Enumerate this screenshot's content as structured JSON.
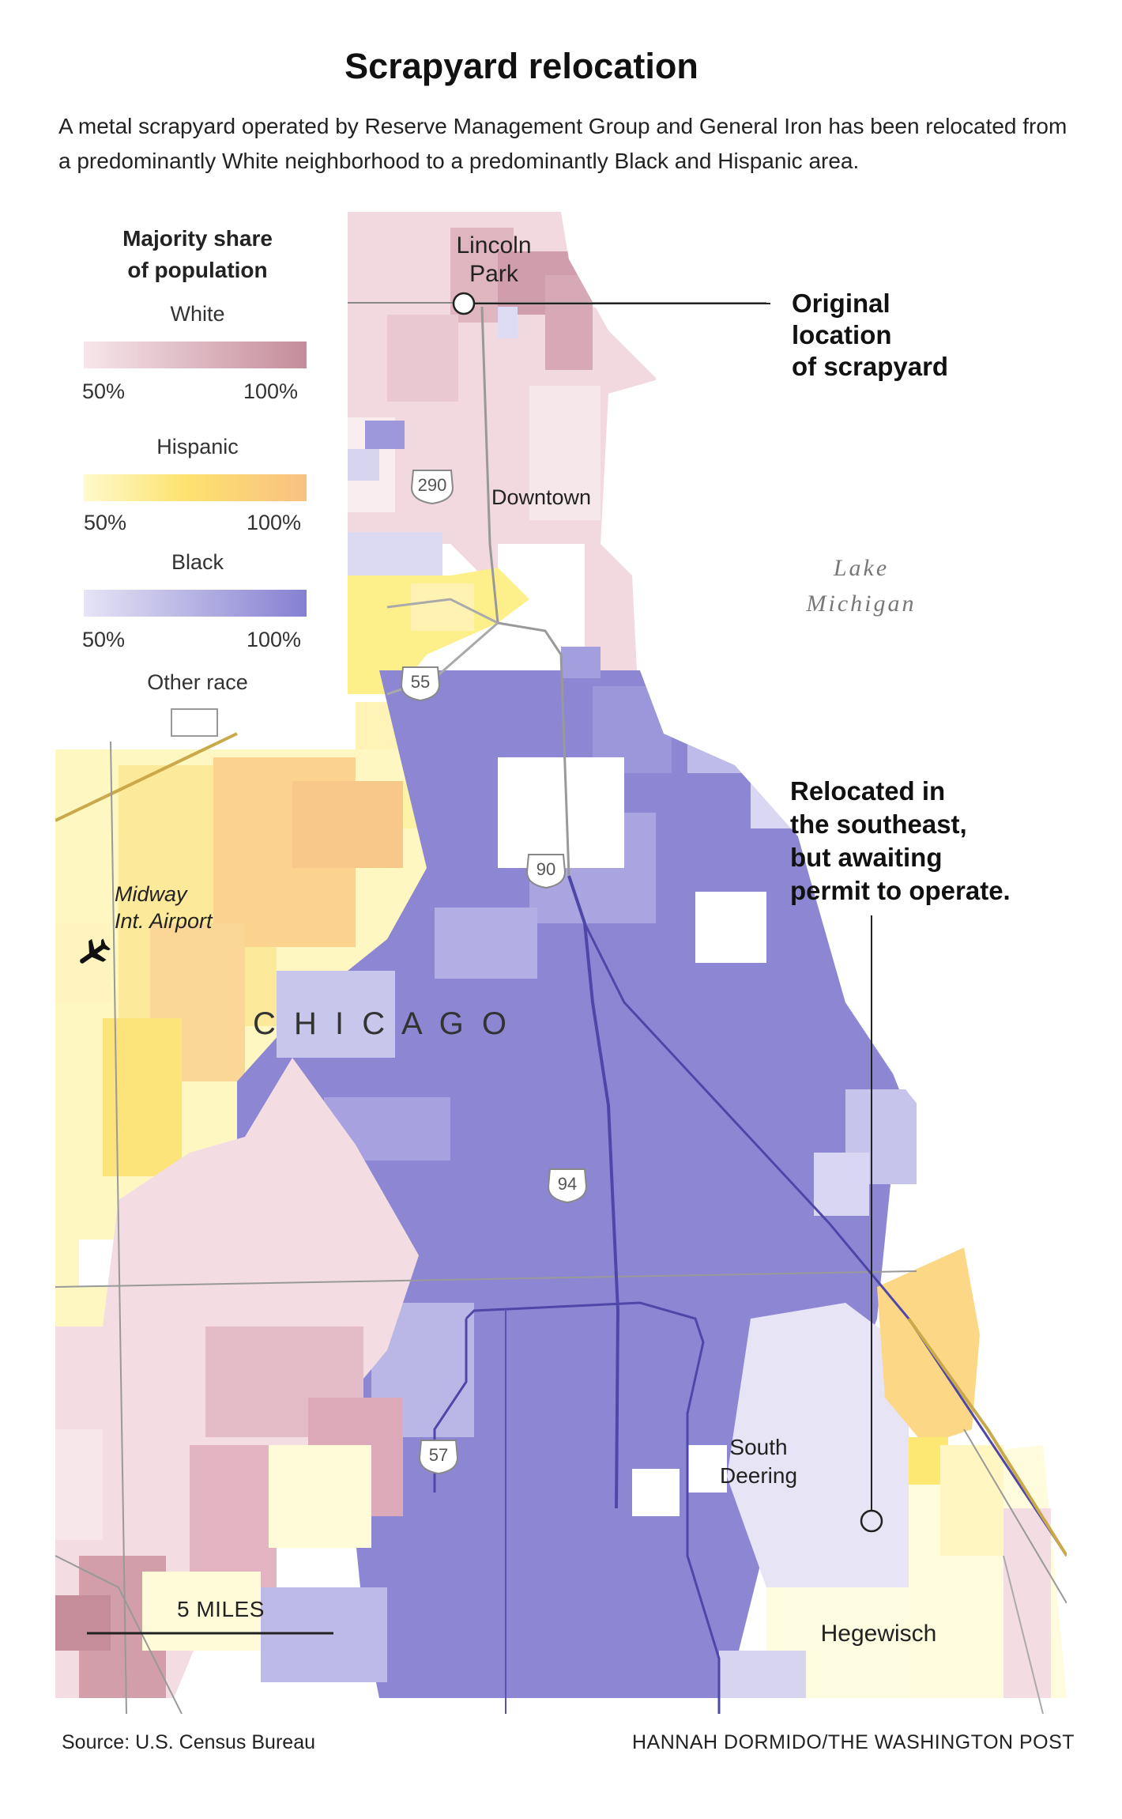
{
  "title": "Scrapyard relocation",
  "subtitle": "A metal scrapyard operated by Reserve Management Group and General Iron has been relocated from a predominantly White neighborhood to a predominantly Black and Hispanic area.",
  "legend": {
    "title_line1": "Majority share",
    "title_line2": "of population",
    "groups": [
      {
        "name": "White",
        "min": "50%",
        "max": "100%",
        "color_light": "#f7e6ea",
        "color_dark": "#c48c9b"
      },
      {
        "name": "Hispanic",
        "min": "50%",
        "max": "100%",
        "color_light": "#fff9cc",
        "color_dark": "#f8c081"
      },
      {
        "name": "Black",
        "min": "50%",
        "max": "100%",
        "color_light": "#e6e4f5",
        "color_dark": "#8680d2"
      }
    ],
    "other": "Other race"
  },
  "places": {
    "lincoln_park_l1": "Lincoln",
    "lincoln_park_l2": "Park",
    "downtown": "Downtown",
    "lake_l1": "Lake",
    "lake_l2": "Michigan",
    "midway_l1": "Midway",
    "midway_l2": "Int. Airport",
    "chicago": "C H I C A G O",
    "south_deering_l1": "South",
    "south_deering_l2": "Deering",
    "hegewisch": "Hegewisch"
  },
  "highways": [
    "290",
    "55",
    "90",
    "94",
    "57"
  ],
  "callouts": {
    "original": [
      "Original",
      "location",
      "of scrapyard"
    ],
    "relocated": [
      "Relocated in",
      "the southeast,",
      "but awaiting",
      "permit to operate."
    ]
  },
  "scale": "5 MILES",
  "source": "Source: U.S. Census Bureau",
  "credit": "HANNAH DORMIDO/THE WASHINGTON POST",
  "icons": {
    "airport": "airplane-icon",
    "marker": "location-circle-icon"
  }
}
